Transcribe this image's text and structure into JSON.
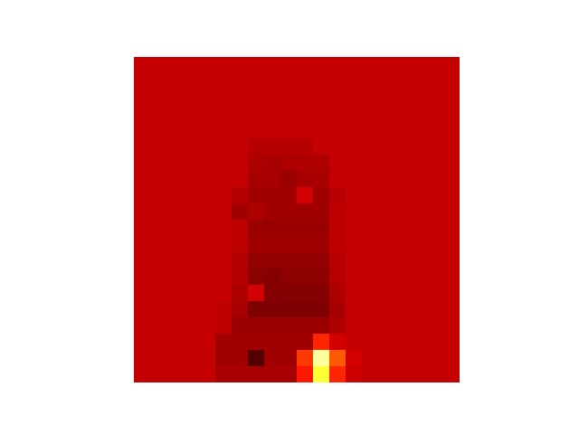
{
  "chart_data": {
    "type": "heatmap",
    "color": "hot",
    "tick_labels": false,
    "zlim": [
      0,
      1
    ],
    "cells": [
      [
        0.28,
        0.28,
        0.28,
        0.28,
        0.28,
        0.28,
        0.28,
        0.28,
        0.28,
        0.28,
        0.28,
        0.28,
        0.28,
        0.28,
        0.28,
        0.28,
        0.28,
        0.28,
        0.28,
        0.28
      ],
      [
        0.28,
        0.28,
        0.28,
        0.28,
        0.28,
        0.28,
        0.28,
        0.28,
        0.28,
        0.28,
        0.28,
        0.28,
        0.28,
        0.28,
        0.28,
        0.28,
        0.28,
        0.28,
        0.28,
        0.28
      ],
      [
        0.28,
        0.28,
        0.28,
        0.28,
        0.28,
        0.28,
        0.28,
        0.28,
        0.28,
        0.28,
        0.28,
        0.28,
        0.28,
        0.28,
        0.28,
        0.28,
        0.28,
        0.28,
        0.28,
        0.28
      ],
      [
        0.28,
        0.28,
        0.28,
        0.28,
        0.28,
        0.28,
        0.28,
        0.28,
        0.28,
        0.28,
        0.28,
        0.28,
        0.28,
        0.28,
        0.28,
        0.28,
        0.28,
        0.28,
        0.28,
        0.28
      ],
      [
        0.28,
        0.28,
        0.28,
        0.28,
        0.28,
        0.28,
        0.28,
        0.28,
        0.28,
        0.28,
        0.28,
        0.28,
        0.28,
        0.28,
        0.28,
        0.28,
        0.28,
        0.28,
        0.28,
        0.28
      ],
      [
        0.28,
        0.28,
        0.28,
        0.28,
        0.28,
        0.28,
        0.28,
        0.26,
        0.26,
        0.26,
        0.26,
        0.28,
        0.28,
        0.28,
        0.28,
        0.28,
        0.28,
        0.28,
        0.28,
        0.28
      ],
      [
        0.28,
        0.28,
        0.28,
        0.28,
        0.28,
        0.28,
        0.28,
        0.25,
        0.24,
        0.25,
        0.25,
        0.25,
        0.28,
        0.28,
        0.28,
        0.28,
        0.28,
        0.28,
        0.28,
        0.28
      ],
      [
        0.28,
        0.28,
        0.28,
        0.28,
        0.28,
        0.28,
        0.28,
        0.24,
        0.24,
        0.22,
        0.24,
        0.24,
        0.28,
        0.28,
        0.28,
        0.28,
        0.28,
        0.28,
        0.28,
        0.28
      ],
      [
        0.28,
        0.28,
        0.28,
        0.28,
        0.28,
        0.28,
        0.26,
        0.23,
        0.23,
        0.23,
        0.3,
        0.23,
        0.26,
        0.28,
        0.28,
        0.28,
        0.28,
        0.28,
        0.28,
        0.28
      ],
      [
        0.28,
        0.28,
        0.28,
        0.28,
        0.28,
        0.28,
        0.23,
        0.25,
        0.23,
        0.23,
        0.23,
        0.23,
        0.27,
        0.28,
        0.28,
        0.28,
        0.28,
        0.28,
        0.28,
        0.28
      ],
      [
        0.28,
        0.28,
        0.28,
        0.28,
        0.28,
        0.28,
        0.27,
        0.22,
        0.22,
        0.22,
        0.22,
        0.22,
        0.27,
        0.28,
        0.28,
        0.28,
        0.28,
        0.28,
        0.28,
        0.28
      ],
      [
        0.28,
        0.28,
        0.28,
        0.28,
        0.28,
        0.28,
        0.27,
        0.23,
        0.23,
        0.23,
        0.23,
        0.23,
        0.27,
        0.28,
        0.28,
        0.28,
        0.28,
        0.28,
        0.28,
        0.28
      ],
      [
        0.28,
        0.28,
        0.28,
        0.28,
        0.28,
        0.28,
        0.26,
        0.21,
        0.21,
        0.21,
        0.21,
        0.21,
        0.26,
        0.28,
        0.28,
        0.28,
        0.28,
        0.28,
        0.28,
        0.28
      ],
      [
        0.28,
        0.28,
        0.28,
        0.28,
        0.28,
        0.28,
        0.26,
        0.2,
        0.19,
        0.2,
        0.2,
        0.2,
        0.26,
        0.28,
        0.28,
        0.28,
        0.28,
        0.28,
        0.28,
        0.28
      ],
      [
        0.28,
        0.28,
        0.28,
        0.28,
        0.28,
        0.28,
        0.25,
        0.3,
        0.19,
        0.19,
        0.19,
        0.19,
        0.25,
        0.28,
        0.28,
        0.28,
        0.28,
        0.28,
        0.28,
        0.28
      ],
      [
        0.28,
        0.28,
        0.28,
        0.28,
        0.28,
        0.27,
        0.24,
        0.18,
        0.18,
        0.18,
        0.18,
        0.18,
        0.24,
        0.28,
        0.28,
        0.28,
        0.28,
        0.28,
        0.28,
        0.28
      ],
      [
        0.28,
        0.28,
        0.28,
        0.28,
        0.28,
        0.27,
        0.22,
        0.22,
        0.22,
        0.22,
        0.22,
        0.22,
        0.25,
        0.28,
        0.28,
        0.28,
        0.28,
        0.28,
        0.28,
        0.28
      ],
      [
        0.28,
        0.28,
        0.28,
        0.28,
        0.28,
        0.23,
        0.23,
        0.23,
        0.23,
        0.23,
        0.23,
        0.42,
        0.3,
        0.28,
        0.28,
        0.28,
        0.28,
        0.28,
        0.28,
        0.28
      ],
      [
        0.28,
        0.28,
        0.28,
        0.28,
        0.28,
        0.23,
        0.23,
        0.12,
        0.23,
        0.23,
        0.45,
        0.9,
        0.5,
        0.3,
        0.28,
        0.28,
        0.28,
        0.28,
        0.28,
        0.28
      ],
      [
        0.28,
        0.28,
        0.28,
        0.28,
        0.28,
        0.24,
        0.24,
        0.24,
        0.24,
        0.24,
        0.4,
        0.8,
        0.42,
        0.29,
        0.28,
        0.28,
        0.28,
        0.28,
        0.28,
        0.28
      ]
    ]
  }
}
